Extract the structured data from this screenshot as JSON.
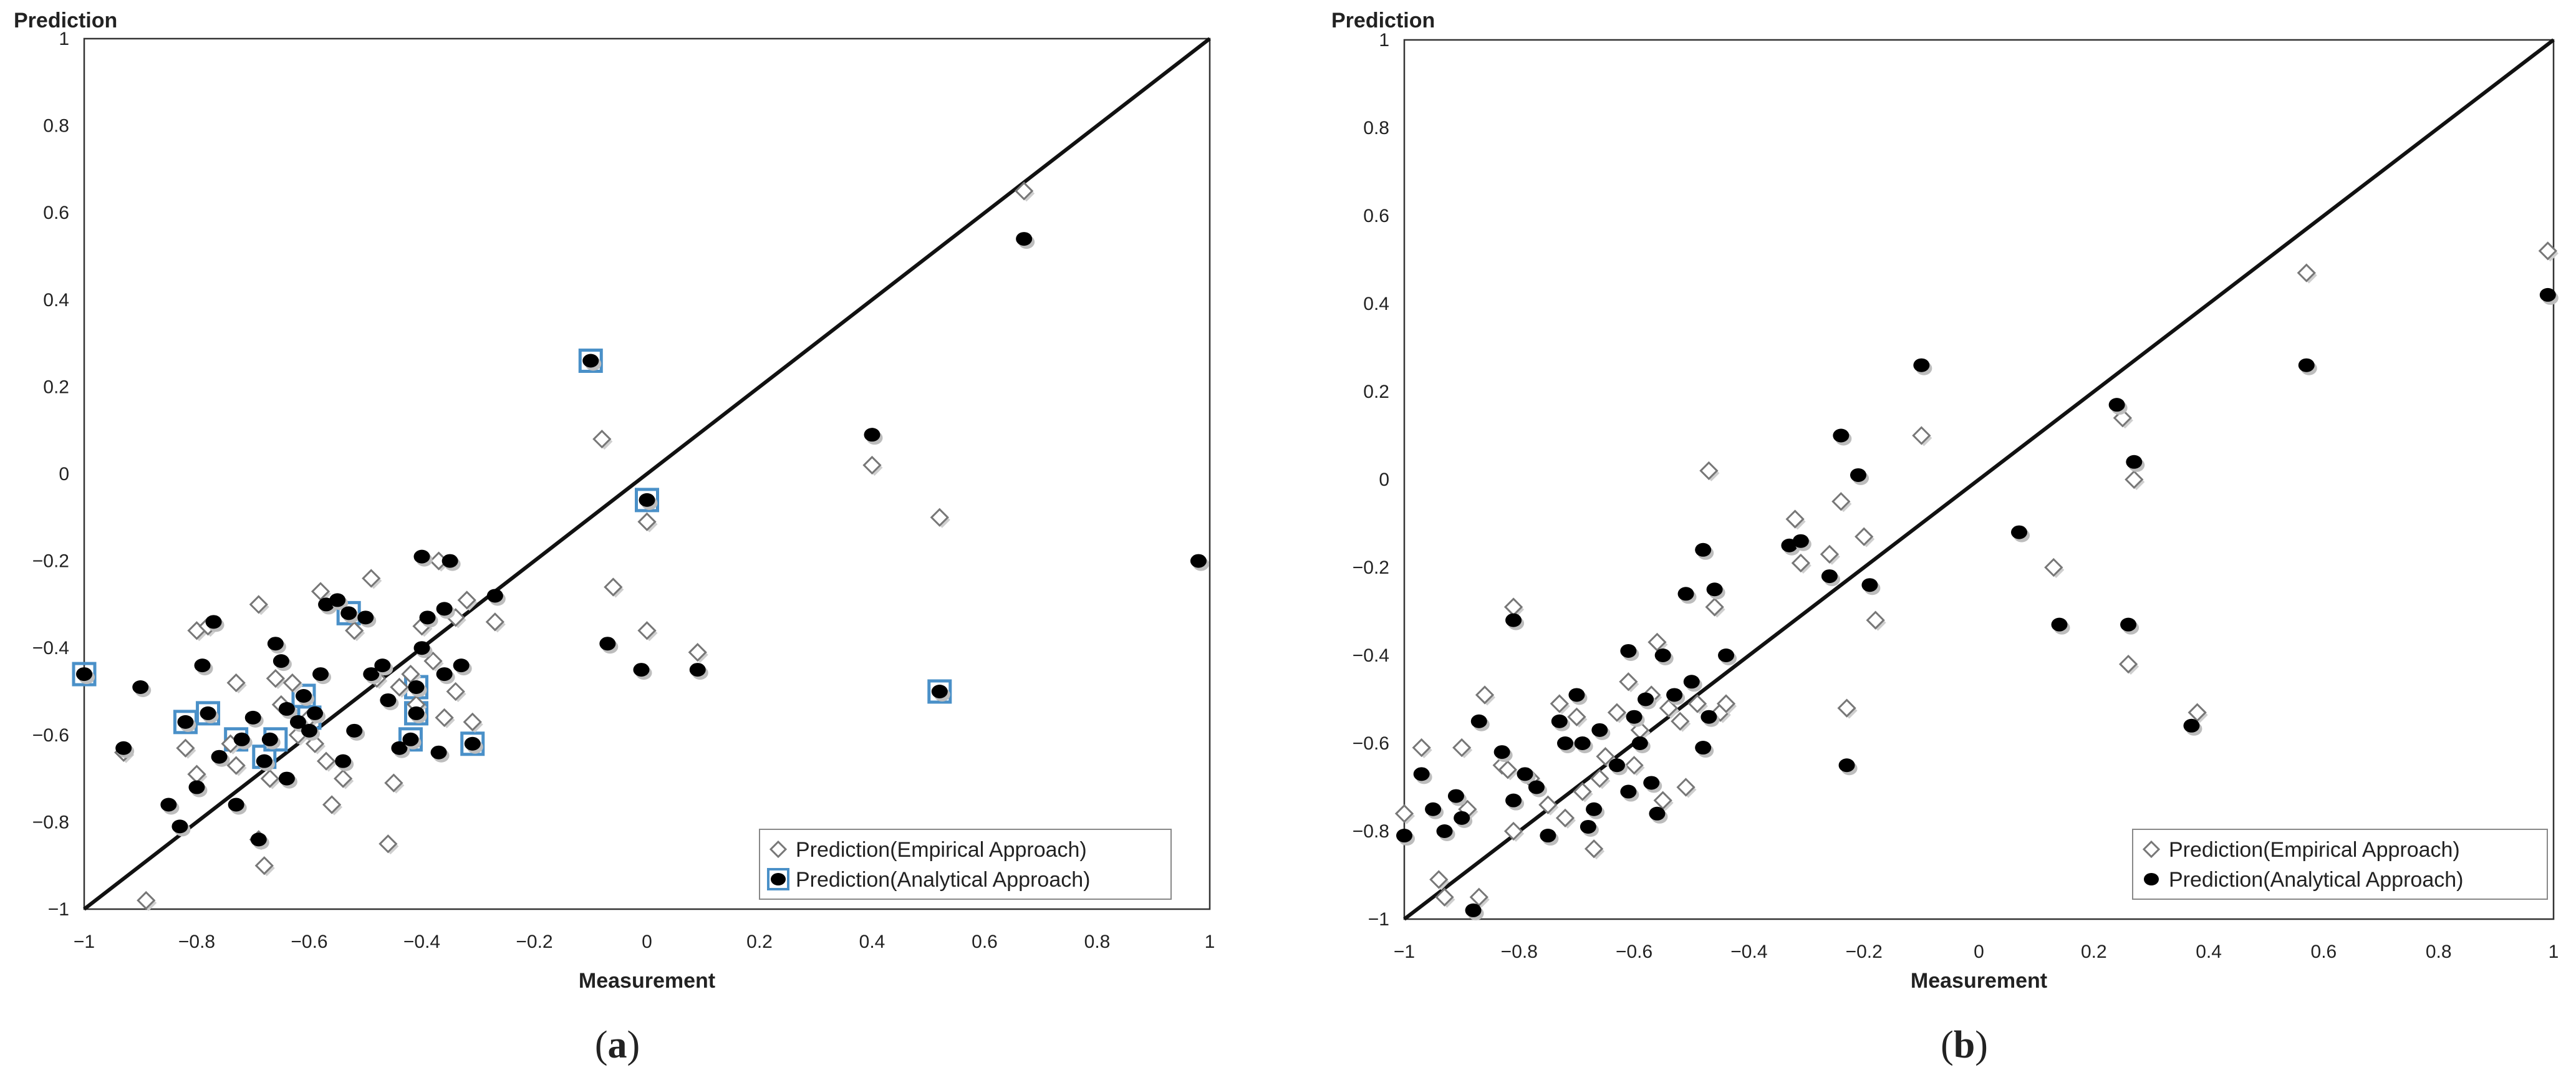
{
  "chart_data": [
    {
      "type": "scatter",
      "panel_label": "a",
      "xlabel": "Measurement",
      "ylabel": "Prediction",
      "xlim": [
        -1,
        1
      ],
      "ylim": [
        -1,
        1
      ],
      "x_ticks": [
        "−1",
        "−0.8",
        "−0.6",
        "−0.4",
        "−0.2",
        "0",
        "0.2",
        "0.4",
        "0.6",
        "0.8",
        "1"
      ],
      "y_ticks": [
        "1",
        "0.8",
        "0.6",
        "0.4",
        "0.2",
        "0",
        "−0.2",
        "−0.4",
        "−0.6",
        "−0.8",
        "−1"
      ],
      "grid": false,
      "reference_line": "y = x",
      "legend_position": "bottom-right",
      "series": [
        {
          "name": "Prediction(Empirical Approach)",
          "marker": "diamond",
          "points": [
            [
              -0.89,
              -0.98
            ],
            [
              -0.93,
              -0.64
            ],
            [
              -0.68,
              -0.9
            ],
            [
              -0.69,
              -0.84
            ],
            [
              -0.82,
              -0.63
            ],
            [
              -0.8,
              -0.69
            ],
            [
              -0.8,
              -0.36
            ],
            [
              -0.78,
              -0.35
            ],
            [
              -0.73,
              -0.48
            ],
            [
              -0.73,
              -0.67
            ],
            [
              -0.69,
              -0.3
            ],
            [
              -0.66,
              -0.47
            ],
            [
              -0.65,
              -0.53
            ],
            [
              -0.62,
              -0.6
            ],
            [
              -0.59,
              -0.62
            ],
            [
              -0.58,
              -0.27
            ],
            [
              -0.56,
              -0.76
            ],
            [
              -0.54,
              -0.7
            ],
            [
              -0.52,
              -0.36
            ],
            [
              -0.49,
              -0.24
            ],
            [
              -0.48,
              -0.47
            ],
            [
              -0.45,
              -0.71
            ],
            [
              -0.46,
              -0.85
            ],
            [
              -0.44,
              -0.49
            ],
            [
              -0.42,
              -0.46
            ],
            [
              -0.41,
              -0.53
            ],
            [
              -0.4,
              -0.35
            ],
            [
              -0.38,
              -0.43
            ],
            [
              -0.37,
              -0.2
            ],
            [
              -0.36,
              -0.56
            ],
            [
              -0.34,
              -0.5
            ],
            [
              -0.32,
              -0.29
            ],
            [
              -0.31,
              -0.57
            ],
            [
              -0.27,
              -0.34
            ],
            [
              -0.34,
              -0.33
            ],
            [
              -0.6,
              -0.56
            ],
            [
              -0.57,
              -0.66
            ],
            [
              -0.63,
              -0.48
            ],
            [
              -0.74,
              -0.62
            ],
            [
              -0.67,
              -0.7
            ],
            [
              -0.08,
              0.08
            ],
            [
              -0.06,
              -0.26
            ],
            [
              0.0,
              -0.36
            ],
            [
              0.0,
              -0.11
            ],
            [
              0.09,
              -0.41
            ],
            [
              0.4,
              0.02
            ],
            [
              0.52,
              -0.1
            ],
            [
              0.67,
              0.65
            ]
          ]
        },
        {
          "name": "Prediction(Analytical Approach)",
          "marker": "circle",
          "points": [
            [
              -1.0,
              -0.46
            ],
            [
              -0.93,
              -0.63
            ],
            [
              -0.9,
              -0.49
            ],
            [
              -0.85,
              -0.76
            ],
            [
              -0.83,
              -0.81
            ],
            [
              -0.82,
              -0.57
            ],
            [
              -0.8,
              -0.72
            ],
            [
              -0.79,
              -0.44
            ],
            [
              -0.78,
              -0.55
            ],
            [
              -0.77,
              -0.34
            ],
            [
              -0.76,
              -0.65
            ],
            [
              -0.73,
              -0.76
            ],
            [
              -0.72,
              -0.61
            ],
            [
              -0.7,
              -0.56
            ],
            [
              -0.68,
              -0.66
            ],
            [
              -0.69,
              -0.84
            ],
            [
              -0.67,
              -0.61
            ],
            [
              -0.66,
              -0.39
            ],
            [
              -0.65,
              -0.43
            ],
            [
              -0.64,
              -0.54
            ],
            [
              -0.64,
              -0.7
            ],
            [
              -0.62,
              -0.57
            ],
            [
              -0.61,
              -0.51
            ],
            [
              -0.6,
              -0.59
            ],
            [
              -0.59,
              -0.55
            ],
            [
              -0.58,
              -0.46
            ],
            [
              -0.57,
              -0.3
            ],
            [
              -0.55,
              -0.29
            ],
            [
              -0.54,
              -0.66
            ],
            [
              -0.53,
              -0.32
            ],
            [
              -0.52,
              -0.59
            ],
            [
              -0.5,
              -0.33
            ],
            [
              -0.49,
              -0.46
            ],
            [
              -0.47,
              -0.44
            ],
            [
              -0.46,
              -0.52
            ],
            [
              -0.44,
              -0.63
            ],
            [
              -0.42,
              -0.61
            ],
            [
              -0.41,
              -0.49
            ],
            [
              -0.41,
              -0.55
            ],
            [
              -0.4,
              -0.4
            ],
            [
              -0.4,
              -0.19
            ],
            [
              -0.39,
              -0.33
            ],
            [
              -0.37,
              -0.64
            ],
            [
              -0.36,
              -0.46
            ],
            [
              -0.36,
              -0.31
            ],
            [
              -0.35,
              -0.2
            ],
            [
              -0.33,
              -0.44
            ],
            [
              -0.31,
              -0.62
            ],
            [
              -0.27,
              -0.28
            ],
            [
              -0.1,
              0.26
            ],
            [
              -0.07,
              -0.39
            ],
            [
              -0.01,
              -0.45
            ],
            [
              0.0,
              -0.06
            ],
            [
              0.09,
              -0.45
            ],
            [
              0.4,
              0.09
            ],
            [
              0.52,
              -0.5
            ],
            [
              0.67,
              0.54
            ],
            [
              0.98,
              -0.2
            ]
          ]
        }
      ],
      "highlighted_points": [
        [
          -1.0,
          -0.46
        ],
        [
          -0.82,
          -0.57
        ],
        [
          -0.78,
          -0.55
        ],
        [
          -0.73,
          -0.61
        ],
        [
          -0.68,
          -0.65
        ],
        [
          -0.66,
          -0.61
        ],
        [
          -0.61,
          -0.51
        ],
        [
          -0.6,
          -0.56
        ],
        [
          -0.53,
          -0.32
        ],
        [
          -0.41,
          -0.49
        ],
        [
          -0.41,
          -0.55
        ],
        [
          -0.42,
          -0.61
        ],
        [
          -0.31,
          -0.62
        ],
        [
          -0.1,
          0.26
        ],
        [
          0.0,
          -0.06
        ],
        [
          0.52,
          -0.5
        ]
      ],
      "highlight_color": "#4a90c8"
    },
    {
      "type": "scatter",
      "panel_label": "b",
      "xlabel": "Measurement",
      "ylabel": "Prediction",
      "xlim": [
        -1,
        1
      ],
      "ylim": [
        -1,
        1
      ],
      "x_ticks": [
        "−1",
        "−0.8",
        "−0.6",
        "−0.4",
        "−0.2",
        "0",
        "0.2",
        "0.4",
        "0.6",
        "0.8",
        "1"
      ],
      "y_ticks": [
        "1",
        "0.8",
        "0.6",
        "0.4",
        "0.2",
        "0",
        "−0.2",
        "−0.4",
        "−0.6",
        "−0.8",
        "−1"
      ],
      "grid": false,
      "reference_line": "y = x",
      "legend_position": "bottom-right",
      "series": [
        {
          "name": "Prediction(Empirical Approach)",
          "marker": "diamond",
          "points": [
            [
              -1.0,
              -0.76
            ],
            [
              -0.97,
              -0.61
            ],
            [
              -0.94,
              -0.91
            ],
            [
              -0.93,
              -0.95
            ],
            [
              -0.9,
              -0.61
            ],
            [
              -0.89,
              -0.75
            ],
            [
              -0.87,
              -0.95
            ],
            [
              -0.86,
              -0.49
            ],
            [
              -0.83,
              -0.65
            ],
            [
              -0.82,
              -0.66
            ],
            [
              -0.81,
              -0.29
            ],
            [
              -0.81,
              -0.8
            ],
            [
              -0.78,
              -0.68
            ],
            [
              -0.75,
              -0.74
            ],
            [
              -0.73,
              -0.51
            ],
            [
              -0.72,
              -0.77
            ],
            [
              -0.7,
              -0.54
            ],
            [
              -0.69,
              -0.71
            ],
            [
              -0.67,
              -0.84
            ],
            [
              -0.66,
              -0.68
            ],
            [
              -0.65,
              -0.63
            ],
            [
              -0.63,
              -0.53
            ],
            [
              -0.61,
              -0.46
            ],
            [
              -0.6,
              -0.65
            ],
            [
              -0.59,
              -0.57
            ],
            [
              -0.57,
              -0.49
            ],
            [
              -0.56,
              -0.37
            ],
            [
              -0.55,
              -0.73
            ],
            [
              -0.54,
              -0.52
            ],
            [
              -0.52,
              -0.55
            ],
            [
              -0.51,
              -0.7
            ],
            [
              -0.49,
              -0.51
            ],
            [
              -0.47,
              0.02
            ],
            [
              -0.46,
              -0.29
            ],
            [
              -0.45,
              -0.53
            ],
            [
              -0.44,
              -0.51
            ],
            [
              -0.32,
              -0.09
            ],
            [
              -0.31,
              -0.19
            ],
            [
              -0.26,
              -0.17
            ],
            [
              -0.24,
              -0.05
            ],
            [
              -0.23,
              -0.52
            ],
            [
              -0.2,
              -0.13
            ],
            [
              -0.18,
              -0.32
            ],
            [
              -0.1,
              0.1
            ],
            [
              0.13,
              -0.2
            ],
            [
              0.25,
              0.14
            ],
            [
              0.26,
              -0.42
            ],
            [
              0.27,
              0.0
            ],
            [
              0.38,
              -0.53
            ],
            [
              0.57,
              0.47
            ],
            [
              0.99,
              0.52
            ]
          ]
        },
        {
          "name": "Prediction(Analytical Approach)",
          "marker": "circle",
          "points": [
            [
              -1.0,
              -0.81
            ],
            [
              -0.97,
              -0.67
            ],
            [
              -0.95,
              -0.75
            ],
            [
              -0.93,
              -0.8
            ],
            [
              -0.91,
              -0.72
            ],
            [
              -0.9,
              -0.77
            ],
            [
              -0.88,
              -0.98
            ],
            [
              -0.87,
              -0.55
            ],
            [
              -0.83,
              -0.62
            ],
            [
              -0.81,
              -0.32
            ],
            [
              -0.81,
              -0.73
            ],
            [
              -0.79,
              -0.67
            ],
            [
              -0.77,
              -0.7
            ],
            [
              -0.75,
              -0.81
            ],
            [
              -0.73,
              -0.55
            ],
            [
              -0.72,
              -0.6
            ],
            [
              -0.7,
              -0.49
            ],
            [
              -0.69,
              -0.6
            ],
            [
              -0.68,
              -0.79
            ],
            [
              -0.67,
              -0.75
            ],
            [
              -0.66,
              -0.57
            ],
            [
              -0.63,
              -0.65
            ],
            [
              -0.61,
              -0.39
            ],
            [
              -0.61,
              -0.71
            ],
            [
              -0.6,
              -0.54
            ],
            [
              -0.59,
              -0.6
            ],
            [
              -0.58,
              -0.5
            ],
            [
              -0.57,
              -0.69
            ],
            [
              -0.56,
              -0.76
            ],
            [
              -0.55,
              -0.4
            ],
            [
              -0.53,
              -0.49
            ],
            [
              -0.51,
              -0.26
            ],
            [
              -0.5,
              -0.46
            ],
            [
              -0.48,
              -0.61
            ],
            [
              -0.48,
              -0.16
            ],
            [
              -0.47,
              -0.54
            ],
            [
              -0.46,
              -0.25
            ],
            [
              -0.44,
              -0.4
            ],
            [
              -0.33,
              -0.15
            ],
            [
              -0.31,
              -0.14
            ],
            [
              -0.26,
              -0.22
            ],
            [
              -0.24,
              0.1
            ],
            [
              -0.23,
              -0.65
            ],
            [
              -0.21,
              0.01
            ],
            [
              -0.19,
              -0.24
            ],
            [
              -0.1,
              0.26
            ],
            [
              0.07,
              -0.12
            ],
            [
              0.14,
              -0.33
            ],
            [
              0.24,
              0.17
            ],
            [
              0.26,
              -0.33
            ],
            [
              0.27,
              0.04
            ],
            [
              0.37,
              -0.56
            ],
            [
              0.57,
              0.26
            ],
            [
              0.99,
              0.42
            ]
          ]
        }
      ]
    }
  ]
}
